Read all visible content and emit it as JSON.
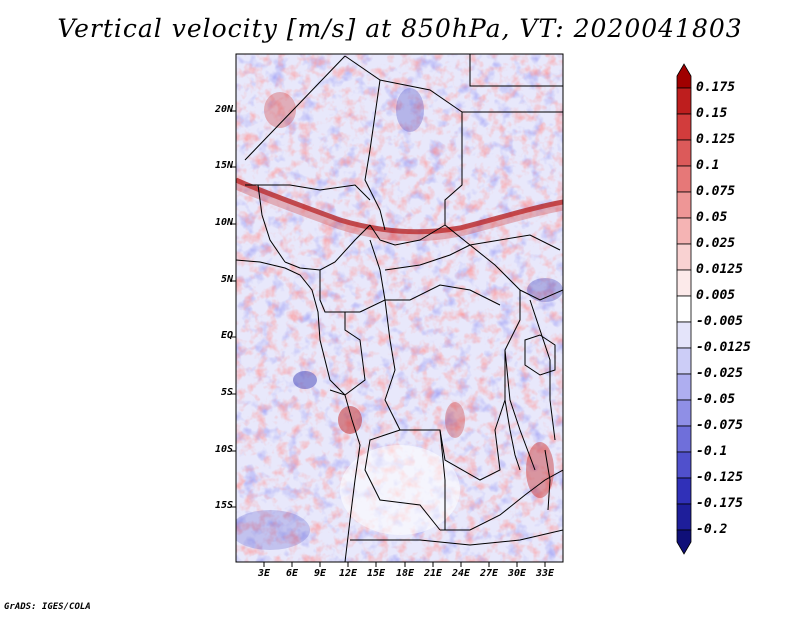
{
  "title": "Vertical velocity [m/s] at 850hPa, VT: 2020041803",
  "credit": "GrADS: IGES/COLA",
  "lat_labels": [
    "20N",
    "15N",
    "10N",
    "5N",
    "EQ",
    "5S",
    "10S",
    "15S"
  ],
  "lon_labels": [
    "3E",
    "6E",
    "9E",
    "12E",
    "15E",
    "18E",
    "21E",
    "24E",
    "27E",
    "30E",
    "33E"
  ],
  "colorbar": {
    "levels": [
      "0.175",
      "0.15",
      "0.125",
      "0.1",
      "0.075",
      "0.05",
      "0.025",
      "0.0125",
      "0.005",
      "-0.005",
      "-0.0125",
      "-0.025",
      "-0.05",
      "-0.075",
      "-0.1",
      "-0.125",
      "-0.175",
      "-0.2"
    ],
    "colors": [
      "#a00000",
      "#be1e1e",
      "#d23c3c",
      "#dc5a5a",
      "#e67878",
      "#ee9696",
      "#f5b4b4",
      "#f9d2d2",
      "#fceaea",
      "#ffffff",
      "#e4e4fa",
      "#cccdf7",
      "#aeaef0",
      "#8f8fe6",
      "#6f6fda",
      "#5050cc",
      "#3030b8",
      "#1e1e9a",
      "#0f0f78"
    ]
  },
  "map_colors": {
    "positive": "#dc5050",
    "negative": "#6464dc",
    "boundary": "#000000"
  }
}
